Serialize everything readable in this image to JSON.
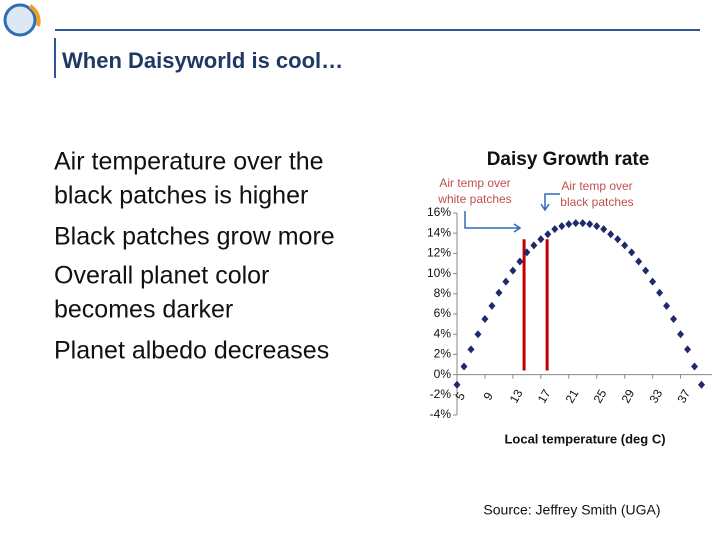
{
  "header": {
    "title": "When Daisyworld is cool…"
  },
  "bullets": [
    [
      "Air temperature over the",
      "black patches is higher"
    ],
    [
      "Black patches grow more"
    ],
    [
      "Overall planet color",
      "becomes darker"
    ],
    [
      "Planet albedo decreases"
    ]
  ],
  "chart_data": {
    "type": "scatter",
    "title": "Daisy Growth rate",
    "x_label": "Local temperature (deg C)",
    "x": [
      5,
      6,
      7,
      8,
      9,
      10,
      11,
      12,
      13,
      14,
      15,
      16,
      17,
      18,
      19,
      20,
      21,
      22,
      23,
      24,
      25,
      26,
      27,
      28,
      29,
      30,
      31,
      32,
      33,
      34,
      35,
      36,
      37,
      38,
      39,
      40
    ],
    "values": [
      -1.0,
      0.8,
      2.5,
      4.0,
      5.5,
      6.8,
      8.1,
      9.2,
      10.3,
      11.2,
      12.1,
      12.8,
      13.4,
      13.9,
      14.4,
      14.7,
      14.9,
      15.0,
      15.0,
      14.9,
      14.7,
      14.4,
      13.9,
      13.4,
      12.8,
      12.1,
      11.2,
      10.3,
      9.2,
      8.1,
      6.8,
      5.5,
      4.0,
      2.5,
      0.8,
      -1.0
    ],
    "color": "#1f2a6b",
    "xlim": [
      5,
      41.5
    ],
    "ylim": [
      -4,
      16
    ],
    "xticks": [
      5,
      9,
      13,
      17,
      21,
      25,
      29,
      33,
      37
    ],
    "yticks": [
      {
        "value": 16,
        "label": "16%"
      },
      {
        "value": 14,
        "label": "14%"
      },
      {
        "value": 12,
        "label": "12%"
      },
      {
        "value": 10,
        "label": "10%"
      },
      {
        "value": 8,
        "label": "8%"
      },
      {
        "value": 6,
        "label": "6%"
      },
      {
        "value": 4,
        "label": "4%"
      },
      {
        "value": 2,
        "label": "2%"
      },
      {
        "value": 0,
        "label": "0%"
      },
      {
        "value": -2,
        "label": "-2%"
      },
      {
        "value": -4,
        "label": "-4%"
      }
    ],
    "annotation_color": "#c00000",
    "annotations": [
      {
        "text": [
          "Air temp over",
          "white patches"
        ],
        "x": 14.6
      },
      {
        "text": [
          "Air temp over",
          "black patches"
        ],
        "x": 17.9
      }
    ]
  },
  "source": "Source: Jeffrey Smith (UGA)"
}
